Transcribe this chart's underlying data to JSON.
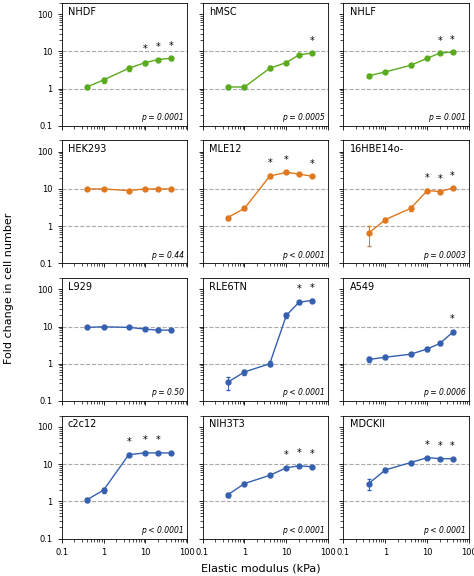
{
  "panels": [
    {
      "title": "NHDF",
      "color": "#5aaa1e",
      "row": 0,
      "col": 0,
      "x": [
        0.4,
        1,
        4,
        10,
        20,
        40
      ],
      "y": [
        1.1,
        1.7,
        3.5,
        5.0,
        6.0,
        6.5
      ],
      "yerr": [
        0.15,
        0.25,
        0.6,
        0.6,
        0.35,
        0.5
      ],
      "stars": [
        false,
        false,
        false,
        true,
        true,
        true
      ],
      "pval": "p = 0.0001"
    },
    {
      "title": "hMSC",
      "color": "#5aaa1e",
      "row": 0,
      "col": 1,
      "x": [
        0.4,
        1,
        4,
        10,
        20,
        40
      ],
      "y": [
        1.1,
        1.1,
        3.5,
        5.0,
        8.0,
        9.0
      ],
      "yerr": [
        0.15,
        0.12,
        0.45,
        0.5,
        0.5,
        0.4
      ],
      "stars": [
        false,
        false,
        false,
        false,
        false,
        true
      ],
      "pval": "p = 0.0005"
    },
    {
      "title": "NHLF",
      "color": "#5aaa1e",
      "row": 0,
      "col": 2,
      "x": [
        0.4,
        1,
        4,
        10,
        20,
        40
      ],
      "y": [
        2.2,
        2.8,
        4.2,
        6.5,
        9.0,
        9.5
      ],
      "yerr": [
        0.2,
        0.2,
        0.4,
        0.5,
        0.5,
        0.4
      ],
      "stars": [
        false,
        false,
        false,
        false,
        true,
        true
      ],
      "pval": "p = 0.001"
    },
    {
      "title": "HEK293",
      "color": "#e07820",
      "row": 1,
      "col": 0,
      "x": [
        0.4,
        1,
        4,
        10,
        20,
        40
      ],
      "y": [
        10.0,
        10.0,
        9.0,
        10.0,
        10.0,
        10.0
      ],
      "yerr": [
        0.5,
        0.4,
        0.4,
        0.4,
        0.4,
        0.4
      ],
      "stars": [
        false,
        false,
        false,
        false,
        false,
        false
      ],
      "pval": "p = 0.44"
    },
    {
      "title": "MLE12",
      "color": "#e07820",
      "row": 1,
      "col": 1,
      "x": [
        0.4,
        1,
        4,
        10,
        20,
        40
      ],
      "y": [
        1.7,
        3.0,
        22.0,
        28.0,
        25.0,
        22.0
      ],
      "yerr": [
        0.2,
        0.3,
        2.5,
        2.0,
        2.0,
        1.5
      ],
      "stars": [
        false,
        false,
        true,
        true,
        false,
        true
      ],
      "pval": "p < 0.0001"
    },
    {
      "title": "16HBE14o-",
      "color": "#e07820",
      "row": 1,
      "col": 2,
      "x": [
        0.4,
        1,
        4,
        10,
        20,
        40
      ],
      "y": [
        0.65,
        1.5,
        3.0,
        9.0,
        8.5,
        10.5
      ],
      "yerr": [
        0.35,
        0.2,
        0.4,
        0.9,
        0.7,
        0.6
      ],
      "stars": [
        false,
        false,
        false,
        true,
        true,
        true
      ],
      "pval": "p = 0.0003"
    },
    {
      "title": "L929",
      "color": "#3560b0",
      "row": 2,
      "col": 0,
      "x": [
        0.4,
        1,
        4,
        10,
        20,
        40
      ],
      "y": [
        9.5,
        9.8,
        9.5,
        8.5,
        8.0,
        8.0
      ],
      "yerr": [
        0.5,
        0.4,
        0.4,
        0.5,
        0.4,
        0.4
      ],
      "stars": [
        false,
        false,
        false,
        false,
        false,
        false
      ],
      "pval": "p = 0.50"
    },
    {
      "title": "RLE6TN",
      "color": "#3560b0",
      "row": 2,
      "col": 1,
      "x": [
        0.4,
        1,
        4,
        10,
        20,
        40
      ],
      "y": [
        0.32,
        0.6,
        1.0,
        20.0,
        45.0,
        50.0
      ],
      "yerr": [
        0.12,
        0.1,
        0.15,
        3.0,
        4.0,
        3.5
      ],
      "stars": [
        false,
        false,
        false,
        false,
        true,
        true
      ],
      "pval": "p < 0.0001"
    },
    {
      "title": "A549",
      "color": "#3560b0",
      "row": 2,
      "col": 2,
      "x": [
        0.4,
        1,
        4,
        10,
        20,
        40
      ],
      "y": [
        1.3,
        1.5,
        1.8,
        2.5,
        3.5,
        7.0
      ],
      "yerr": [
        0.2,
        0.2,
        0.2,
        0.3,
        0.4,
        0.8
      ],
      "stars": [
        false,
        false,
        false,
        false,
        false,
        true
      ],
      "pval": "p = 0.0006"
    },
    {
      "title": "c2c12",
      "color": "#3560b0",
      "row": 3,
      "col": 0,
      "x": [
        0.4,
        1,
        4,
        10,
        20,
        40
      ],
      "y": [
        1.1,
        2.0,
        18.0,
        20.0,
        20.0,
        20.0
      ],
      "yerr": [
        0.15,
        0.3,
        1.5,
        1.5,
        1.5,
        1.5
      ],
      "stars": [
        false,
        false,
        true,
        true,
        true,
        false
      ],
      "pval": "p < 0.0001"
    },
    {
      "title": "NIH3T3",
      "color": "#3560b0",
      "row": 3,
      "col": 1,
      "x": [
        0.4,
        1,
        4,
        10,
        20,
        40
      ],
      "y": [
        1.5,
        3.0,
        5.0,
        8.0,
        9.0,
        8.5
      ],
      "yerr": [
        0.2,
        0.3,
        0.5,
        0.6,
        0.7,
        0.6
      ],
      "stars": [
        false,
        false,
        false,
        true,
        true,
        true
      ],
      "pval": "p < 0.0001"
    },
    {
      "title": "MDCKII",
      "color": "#3560b0",
      "row": 3,
      "col": 2,
      "x": [
        0.4,
        1,
        4,
        10,
        20,
        40
      ],
      "y": [
        3.0,
        7.0,
        11.0,
        15.0,
        14.0,
        14.0
      ],
      "yerr": [
        1.0,
        0.8,
        0.9,
        1.0,
        1.0,
        1.0
      ],
      "stars": [
        false,
        false,
        false,
        true,
        true,
        true
      ],
      "pval": "p < 0.0001"
    }
  ],
  "ylabel": "Fold change in cell number",
  "xlabel": "Elastic modulus (kPa)",
  "ylim": [
    0.1,
    200
  ],
  "xlim": [
    0.2,
    100
  ],
  "yticks": [
    0.1,
    1,
    10,
    100
  ],
  "yticklabels": [
    "0.1",
    "1",
    "10",
    "100"
  ],
  "xticks": [
    0.1,
    1,
    10,
    100
  ],
  "xticklabels": [
    "0.1",
    "1",
    "10",
    "100"
  ],
  "hlines": [
    1,
    10
  ],
  "background_color": "#ffffff",
  "hline_color": "#aaaaaa",
  "hline_style": "--",
  "hline_lw": 0.8
}
